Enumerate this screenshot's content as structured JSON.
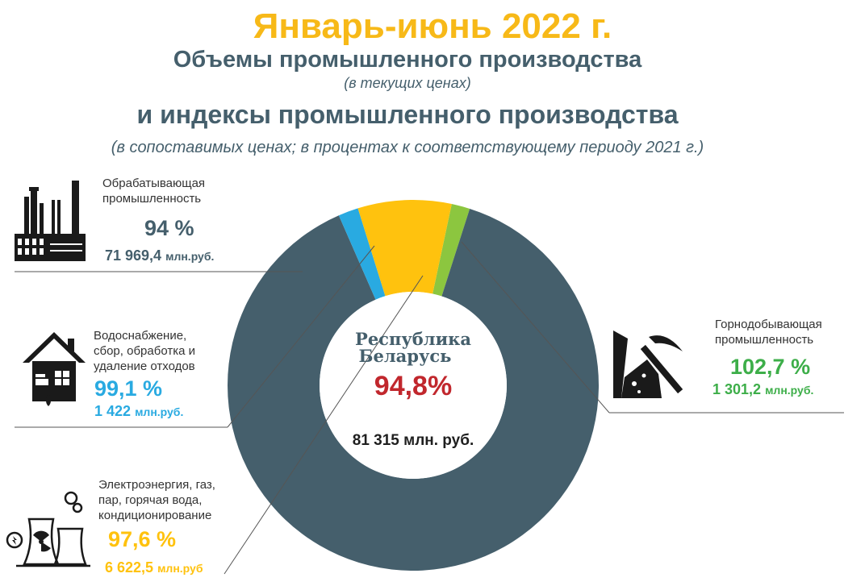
{
  "header": {
    "title": "Январь-июнь 2022 г.",
    "subtitle1": "Объемы промышленного производства",
    "subtitle1_note": "(в текущих ценах)",
    "subtitle2": "и индексы промышленного производства",
    "subtitle2_note": "(в сопоставимых ценах; в процентах к соответствующему периоду 2021 г.)"
  },
  "chart_data": {
    "type": "pie",
    "donut": true,
    "center": {
      "line1": "Республика",
      "line2": "Беларусь",
      "index": "94,8%",
      "total": "81 315 млн. руб."
    },
    "slices": [
      {
        "label_lines": [
          "Обрабатывающая",
          "промышленность"
        ],
        "index": "94 %",
        "value": 71969.4,
        "value_text": "71 969,4",
        "unit": "млн.руб.",
        "color": "#455F6C"
      },
      {
        "label_lines": [
          "Водоснабжение,",
          "сбор, обработка и",
          "удаление отходов"
        ],
        "index": "99,1 %",
        "value": 1422,
        "value_text": "1 422",
        "unit": "млн.руб.",
        "color": "#29AAE1"
      },
      {
        "label_lines": [
          "Электроэнергия, газ,",
          "пар, горячая вода,",
          "кондиционирование"
        ],
        "index": "97,6 %",
        "value": 6622.5,
        "value_text": "6 622,5",
        "unit": "млн.руб",
        "color": "#FFC20E"
      },
      {
        "label_lines": [
          "Горнодобывающая",
          "промышленность"
        ],
        "index": "102,7 %",
        "value": 1301.2,
        "value_text": "1 301,2",
        "unit": "млн.руб.",
        "color": "#8CC63F"
      }
    ]
  },
  "colors": {
    "title": "#F7B918",
    "heading": "#455F6C",
    "manufacturing": "#455F6C",
    "water": "#29AAE1",
    "energy": "#FFC20E",
    "mining": "#3DAE49",
    "center_index": "#C1272D",
    "icon": "#1a1a1a"
  },
  "icons": {
    "manufacturing": "factory-icon",
    "water": "house-water-icon",
    "energy": "power-plant-icon",
    "mining": "pickaxe-mine-icon"
  }
}
